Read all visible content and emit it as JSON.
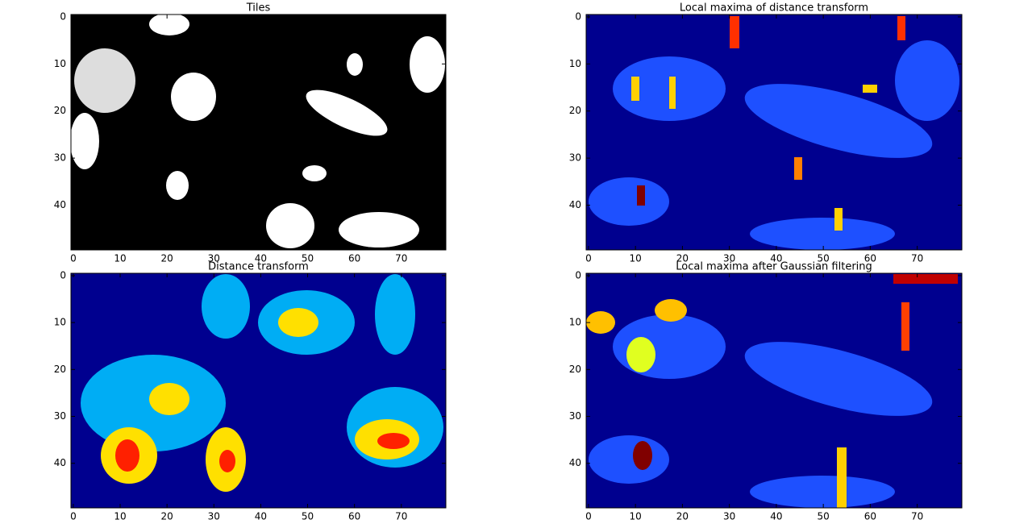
{
  "chart_data": [
    {
      "type": "image",
      "title": "Tiles",
      "color": "#000000",
      "xlim": [
        -0.5,
        79.5
      ],
      "ylim": [
        49.5,
        -0.5
      ],
      "xticks": [
        0,
        10,
        20,
        30,
        40,
        50,
        60,
        70
      ],
      "yticks": [
        0,
        10,
        20,
        30,
        40
      ]
    },
    {
      "type": "image",
      "title": "Local maxima of distance transform",
      "color": "#00008f",
      "xlim": [
        -0.5,
        79.5
      ],
      "ylim": [
        49.5,
        -0.5
      ],
      "xticks": [
        0,
        10,
        20,
        30,
        40,
        50,
        60,
        70
      ],
      "yticks": [
        0,
        10,
        20,
        30,
        40
      ]
    },
    {
      "type": "image",
      "title": "Distance transform",
      "color": "#00008f",
      "xlim": [
        -0.5,
        79.5
      ],
      "ylim": [
        49.5,
        -0.5
      ],
      "xticks": [
        0,
        10,
        20,
        30,
        40,
        50,
        60,
        70
      ],
      "yticks": [
        0,
        10,
        20,
        30,
        40
      ]
    },
    {
      "type": "image",
      "title": "Local maxima after Gaussian filtering",
      "color": "#00008f",
      "xlim": [
        -0.5,
        79.5
      ],
      "ylim": [
        49.5,
        -0.5
      ],
      "xticks": [
        0,
        10,
        20,
        30,
        40,
        50,
        60,
        70
      ],
      "yticks": [
        0,
        10,
        20,
        30,
        40
      ]
    }
  ]
}
